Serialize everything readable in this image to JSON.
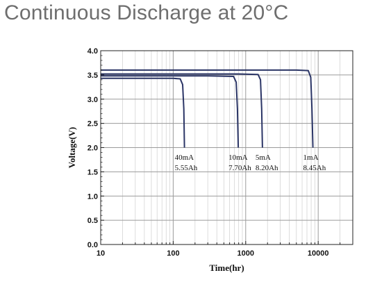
{
  "page": {
    "title": "Continuous Discharge at 20°C"
  },
  "chart_data": {
    "type": "line",
    "title": "Continuous Discharge at 20°C",
    "xlabel": "Time(hr)",
    "ylabel": "Voltage(V)",
    "xscale": "log",
    "xlim": [
      10,
      30000
    ],
    "ylim": [
      0,
      4.0
    ],
    "xticks": [
      10,
      100,
      1000,
      10000
    ],
    "xtick_labels": [
      "10",
      "100",
      "1000",
      "10000"
    ],
    "yticks": [
      0,
      0.5,
      1.0,
      1.5,
      2.0,
      2.5,
      3.0,
      3.5,
      4.0
    ],
    "ytick_labels": [
      "0.0",
      "0.5",
      "1.0",
      "1.5",
      "2.0",
      "2.5",
      "3.0",
      "3.5",
      "4.0"
    ],
    "grid": true,
    "line_color": "#2b3566",
    "series": [
      {
        "name": "40mA",
        "capacity": "5.55Ah",
        "x": [
          10,
          100,
          125,
          135,
          140,
          143
        ],
        "y": [
          3.43,
          3.43,
          3.42,
          3.3,
          2.8,
          2.0
        ]
      },
      {
        "name": "10mA",
        "capacity": "7.70Ah",
        "x": [
          10,
          300,
          680,
          740,
          770,
          790
        ],
        "y": [
          3.48,
          3.48,
          3.47,
          3.35,
          2.8,
          2.0
        ]
      },
      {
        "name": "5mA",
        "capacity": "8.20Ah",
        "x": [
          10,
          800,
          1480,
          1600,
          1660,
          1700
        ],
        "y": [
          3.52,
          3.52,
          3.51,
          3.4,
          2.8,
          2.0
        ]
      },
      {
        "name": "1mA",
        "capacity": "8.45Ah",
        "x": [
          10,
          5000,
          7300,
          7900,
          8200,
          8450
        ],
        "y": [
          3.6,
          3.6,
          3.59,
          3.45,
          2.8,
          2.0
        ]
      }
    ]
  }
}
